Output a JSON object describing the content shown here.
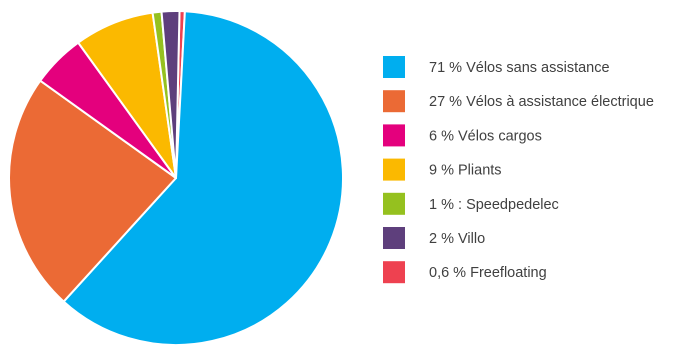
{
  "chart_data": {
    "type": "pie",
    "title": "",
    "legend_position": "right",
    "slices": [
      {
        "label": "71 % Vélos sans assistance",
        "value": 71,
        "color": "#00AEEF"
      },
      {
        "label": "27 % Vélos à assistance électrique",
        "value": 27,
        "color": "#EB6A35"
      },
      {
        "label": "6 % Vélos cargos",
        "value": 6,
        "color": "#E4007D"
      },
      {
        "label": "9 % Pliants",
        "value": 9,
        "color": "#FBB900"
      },
      {
        "label": "1 % : Speedpedelec",
        "value": 1,
        "color": "#95C11F"
      },
      {
        "label": "2 % Villo",
        "value": 2,
        "color": "#5E3F7C"
      },
      {
        "label": "0,6 % Freefloating",
        "value": 0.6,
        "color": "#EE4150"
      }
    ]
  }
}
